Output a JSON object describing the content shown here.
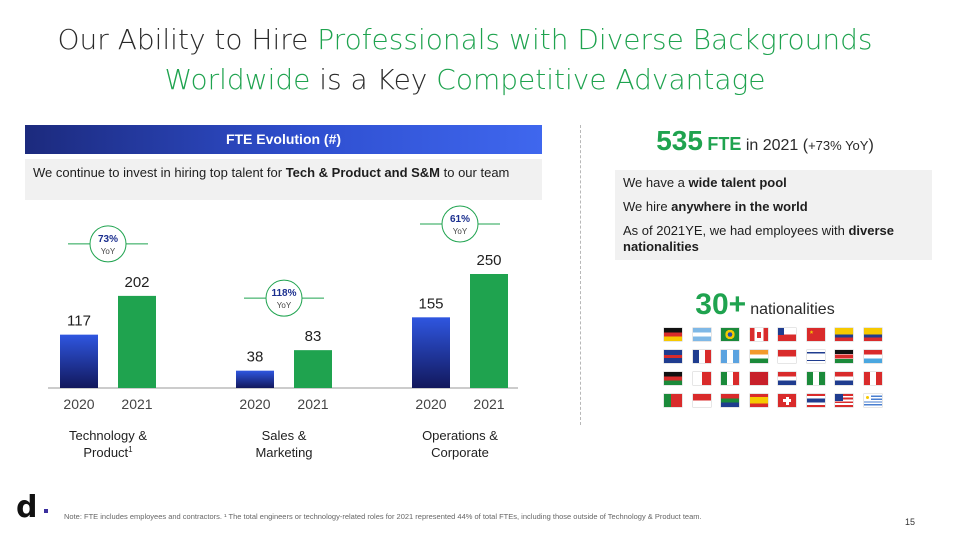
{
  "title": {
    "line1_a": "Our Ability to Hire ",
    "line1_b": "Professionals with Diverse Backgrounds",
    "line2_a": "Worldwide",
    "line2_b": " is a Key ",
    "line2_c": "Competitive Advantage"
  },
  "fte_header": "FTE Evolution (#)",
  "fte_desc": {
    "a": "We continue to invest in hiring top talent for ",
    "b": "Tech & Product and S&M",
    "c": " to our team"
  },
  "chart_data": {
    "type": "bar",
    "groups": [
      {
        "name": "Technology & Product",
        "sup": "1",
        "years": [
          "2020",
          "2021"
        ],
        "values": [
          117,
          202
        ],
        "growth": "73%",
        "growth_label": "YoY"
      },
      {
        "name": "Sales & Marketing",
        "sup": "",
        "years": [
          "2020",
          "2021"
        ],
        "values": [
          38,
          83
        ],
        "growth": "118%",
        "growth_label": "YoY"
      },
      {
        "name": "Operations & Corporate",
        "sup": "",
        "years": [
          "2020",
          "2021"
        ],
        "values": [
          155,
          250
        ],
        "growth": "61%",
        "growth_label": "YoY"
      }
    ],
    "colors": {
      "2020": "#1b2f8f",
      "2021": "#1fa34f"
    },
    "ylim": [
      0,
      250
    ]
  },
  "kpi": {
    "value": "535",
    "unit": "FTE",
    "text": " in 2021 (",
    "change": "+73% YoY",
    "close": ")"
  },
  "talent": {
    "p1a": "We have a ",
    "p1b": "wide talent pool",
    "p2a": "We hire ",
    "p2b": "anywhere in the world",
    "p3a": "As of 2021YE, we had employees with ",
    "p3b": "diverse nationalities"
  },
  "nationalities": {
    "value": "30+",
    "label": "nationalities"
  },
  "flags": [
    "germany-flag",
    "argentina-flag",
    "brazil-flag",
    "canada-flag",
    "chile-flag",
    "china-flag",
    "colombia-flag",
    "ecuador-flag",
    "uk-flag",
    "france-flag",
    "guatemala-flag",
    "india-flag",
    "indonesia-flag",
    "israel-flag",
    "kenya-flag",
    "luxembourg-flag",
    "malawi-flag",
    "malta-flag",
    "mexico-flag",
    "morocco-flag",
    "netherlands-flag",
    "nigeria-flag",
    "paraguay-flag",
    "peru-flag",
    "portugal-flag",
    "singapore-flag",
    "south-africa-flag",
    "spain-flag",
    "switzerland-flag",
    "thailand-flag",
    "usa-flag",
    "uruguay-flag"
  ],
  "logo": "d",
  "note": "Note: FTE includes employees and contractors. ¹ The total engineers or technology-related roles for 2021 represented 44% of total FTEs, including those outside of Technology & Product team.",
  "page_number": "15"
}
